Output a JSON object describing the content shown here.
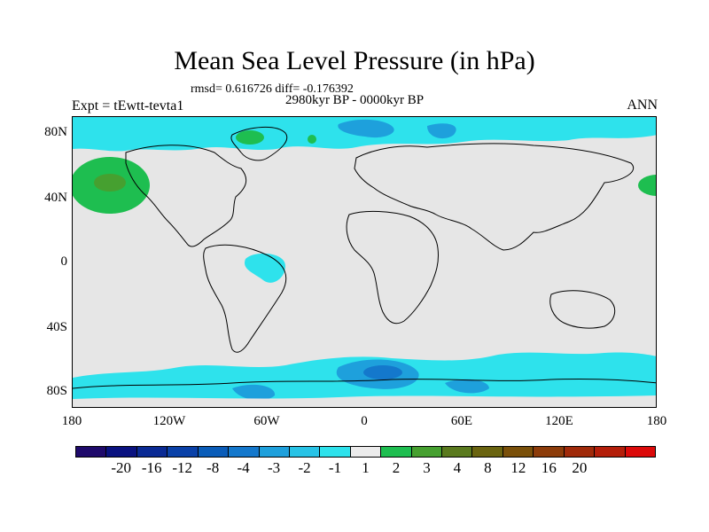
{
  "header": {
    "title": "Mean Sea Level Pressure (in hPa)",
    "stats": "rmsd= 0.616726 diff= -0.176392",
    "period": "2980kyr BP - 0000kyr BP",
    "experiment": "Expt = tEwtt-tevta1",
    "season": "ANN"
  },
  "axes": {
    "lat_labels": [
      "80N",
      "40N",
      "0",
      "40S",
      "80S"
    ],
    "lon_labels": [
      "180",
      "120W",
      "60W",
      "0",
      "60E",
      "120E",
      "180"
    ]
  },
  "colorbar": {
    "colors": [
      "#1f0a6b",
      "#0a1280",
      "#0a2a94",
      "#0a41a8",
      "#0a5cb8",
      "#1478cc",
      "#1ea0dc",
      "#28c3e6",
      "#2ee2ec",
      "#ebebeb",
      "#1ebe50",
      "#46a030",
      "#5a7a1e",
      "#6a6410",
      "#7a500a",
      "#8c3c0a",
      "#a02a0a",
      "#b41e0a",
      "#dc0a0a"
    ],
    "labels": [
      "-20",
      "-16",
      "-12",
      "-8",
      "-4",
      "-3",
      "-2",
      "-1",
      "1",
      "2",
      "3",
      "4",
      "8",
      "12",
      "16",
      "20"
    ]
  }
}
